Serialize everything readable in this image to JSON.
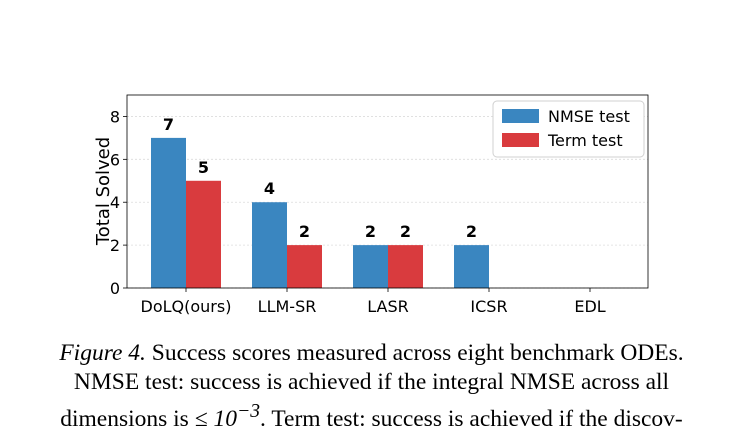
{
  "chart_data": {
    "type": "bar",
    "categories": [
      "DoLQ(ours)",
      "LLM-SR",
      "LASR",
      "ICSR",
      "EDL"
    ],
    "series": [
      {
        "name": "NMSE test",
        "values": [
          7,
          4,
          2,
          2,
          0
        ],
        "labels": [
          "7",
          "4",
          "2",
          "2",
          ""
        ],
        "color": "#3a86c0"
      },
      {
        "name": "Term test",
        "values": [
          5,
          2,
          2,
          0,
          0
        ],
        "labels": [
          "5",
          "2",
          "2",
          "",
          ""
        ],
        "color": "#d93b3e"
      }
    ],
    "title": "",
    "xlabel": "",
    "ylabel": "Total Solved",
    "ylim": [
      0,
      9
    ],
    "yticks": [
      0,
      2,
      4,
      6,
      8
    ],
    "grid": true,
    "legend_position": "top-right"
  },
  "caption": {
    "figure_label": "Figure 4.",
    "line1_text": " Success scores measured across eight benchmark ODEs.",
    "line2_text": "NMSE test: success is achieved if the integral NMSE across all",
    "line3_start": "dimensions is ",
    "line3_math": "≤ 10",
    "line3_exp": "−3",
    "line3_end": ". Term test: success is achieved if the discov-"
  }
}
